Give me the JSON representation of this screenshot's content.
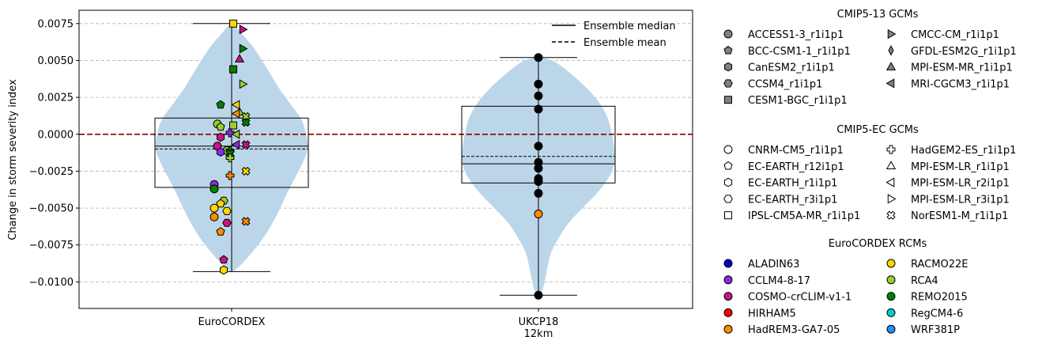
{
  "chart_data": {
    "type": "violin",
    "title": "",
    "xlabel": "",
    "ylabel": "Change in storm severity index",
    "categories": [
      "EuroCORDEX",
      "UKCP18 12km"
    ],
    "category_tick_lines": [
      [
        "EuroCORDEX"
      ],
      [
        "UKCP18",
        "12km"
      ]
    ],
    "ylim": [
      -0.0118,
      0.0084
    ],
    "yticks": [
      -0.01,
      -0.0075,
      -0.005,
      -0.0025,
      0,
      0.0025,
      0.005,
      0.0075
    ],
    "ytick_labels": [
      "−0.0100",
      "−0.0075",
      "−0.0050",
      "−0.0025",
      "0.0000",
      "0.0025",
      "0.0050",
      "0.0075"
    ],
    "grid": "y-dashed",
    "zero_line_color": "#8b0000",
    "violin_color": "#bcd6e9",
    "summary": [
      {
        "category": "EuroCORDEX",
        "q1": -0.0036,
        "median": -0.0008,
        "mean": -0.001,
        "q3": 0.0011,
        "whisker_low": -0.0093,
        "whisker_high": 0.0075
      },
      {
        "category": "UKCP18 12km",
        "q1": -0.0033,
        "median": -0.002,
        "mean": -0.0015,
        "q3": 0.0019,
        "whisker_low": -0.0109,
        "whisker_high": 0.0052
      }
    ],
    "violin_profiles": [
      {
        "category": "EuroCORDEX",
        "shape": [
          [
            0.0075,
            0.02
          ],
          [
            0.0069,
            0.12
          ],
          [
            0.006,
            0.27
          ],
          [
            0.005,
            0.4
          ],
          [
            0.004,
            0.52
          ],
          [
            0.003,
            0.64
          ],
          [
            0.002,
            0.78
          ],
          [
            0.001,
            0.92
          ],
          [
            0,
            0.98
          ],
          [
            -0.001,
            1.0
          ],
          [
            -0.002,
            0.93
          ],
          [
            -0.003,
            0.83
          ],
          [
            -0.004,
            0.73
          ],
          [
            -0.005,
            0.64
          ],
          [
            -0.006,
            0.54
          ],
          [
            -0.007,
            0.42
          ],
          [
            -0.008,
            0.27
          ],
          [
            -0.0088,
            0.13
          ],
          [
            -0.0093,
            0.02
          ]
        ]
      },
      {
        "category": "UKCP18 12km",
        "shape": [
          [
            0.0052,
            0.05
          ],
          [
            0.0049,
            0.22
          ],
          [
            0.004,
            0.45
          ],
          [
            0.003,
            0.66
          ],
          [
            0.002,
            0.82
          ],
          [
            0.001,
            0.92
          ],
          [
            0,
            0.97
          ],
          [
            -0.001,
            1.0
          ],
          [
            -0.002,
            1.0
          ],
          [
            -0.003,
            0.92
          ],
          [
            -0.004,
            0.77
          ],
          [
            -0.005,
            0.58
          ],
          [
            -0.006,
            0.4
          ],
          [
            -0.007,
            0.27
          ],
          [
            -0.008,
            0.17
          ],
          [
            -0.009,
            0.12
          ],
          [
            -0.0098,
            0.09
          ],
          [
            -0.0104,
            0.06
          ],
          [
            -0.0109,
            0.02
          ]
        ]
      }
    ],
    "series": [
      {
        "category": "EuroCORDEX",
        "points": [
          {
            "dx": 0.01,
            "y": 0.0075,
            "gcm": "CESM1-BGC_r1i1p1",
            "rcm": "RACMO22E"
          },
          {
            "dx": 0.07,
            "y": 0.0071,
            "gcm": "CMCC-CM_r1i1p1",
            "rcm": "COSMO-crCLIM-v1-1"
          },
          {
            "dx": 0.07,
            "y": 0.0058,
            "gcm": "CMCC-CM_r1i1p1",
            "rcm": "REMO2015"
          },
          {
            "dx": 0.05,
            "y": 0.0051,
            "gcm": "MPI-ESM-MR_r1i1p1",
            "rcm": "COSMO-crCLIM-v1-1"
          },
          {
            "dx": 0.01,
            "y": 0.0044,
            "gcm": "CESM1-BGC_r1i1p1",
            "rcm": "REMO2015"
          },
          {
            "dx": 0.07,
            "y": 0.0034,
            "gcm": "CMCC-CM_r1i1p1",
            "rcm": "RCA4"
          },
          {
            "dx": 0.03,
            "y": 0.002,
            "gcm": "MRI-CGCM3_r1i1p1",
            "rcm": "RACMO22E"
          },
          {
            "dx": 0.05,
            "y": 0.0015,
            "gcm": "MPI-ESM-MR_r1i1p1",
            "rcm": "RCA4"
          },
          {
            "dx": 0.03,
            "y": 0.0014,
            "gcm": "MRI-CGCM3_r1i1p1",
            "rcm": "HadREM3-GA7-05"
          },
          {
            "dx": 0.09,
            "y": 0.0012,
            "gcm": "NorESM1-M_r1i1p1",
            "rcm": "RCA4"
          },
          {
            "dx": 0.09,
            "y": 0.0008,
            "gcm": "NorESM1-M_r1i1p1",
            "rcm": "REMO2015"
          },
          {
            "dx": -0.07,
            "y": 0.002,
            "gcm": "BCC-CSM1-1_r1i1p1",
            "rcm": "REMO2015"
          },
          {
            "dx": 0.01,
            "y": 0.0006,
            "gcm": "CESM1-BGC_r1i1p1",
            "rcm": "RCA4"
          },
          {
            "dx": -0.09,
            "y": 0.0007,
            "gcm": "ACCESS1-3_r1i1p1",
            "rcm": "RCA4"
          },
          {
            "dx": -0.07,
            "y": 0.0005,
            "gcm": "BCC-CSM1-1_r1i1p1",
            "rcm": "RCA4"
          },
          {
            "dx": -0.01,
            "y": 0.0001,
            "gcm": "HadGEM2-ES_r1i1p1",
            "rcm": "CCLM4-8-17"
          },
          {
            "dx": 0.03,
            "y": 0.0,
            "gcm": "MRI-CGCM3_r1i1p1",
            "rcm": "RCA4"
          },
          {
            "dx": -0.07,
            "y": -0.0002,
            "gcm": "CanESM2_r1i1p1",
            "rcm": "COSMO-crCLIM-v1-1"
          },
          {
            "dx": 0.03,
            "y": -0.0007,
            "gcm": "MRI-CGCM3_r1i1p1",
            "rcm": "CCLM4-8-17"
          },
          {
            "dx": 0.09,
            "y": -0.0007,
            "gcm": "NorESM1-M_r1i1p1",
            "rcm": "COSMO-crCLIM-v1-1"
          },
          {
            "dx": -0.09,
            "y": -0.0008,
            "gcm": "ACCESS1-3_r1i1p1",
            "rcm": "COSMO-crCLIM-v1-1"
          },
          {
            "dx": -0.03,
            "y": -0.0011,
            "gcm": "ACCESS1-3_r1i1p1",
            "rcm": "RCA4"
          },
          {
            "dx": -0.01,
            "y": -0.0011,
            "gcm": "HadGEM2-ES_r1i1p1",
            "rcm": "REMO2015"
          },
          {
            "dx": -0.07,
            "y": -0.0012,
            "gcm": "CanESM2_r1i1p1",
            "rcm": "CCLM4-8-17"
          },
          {
            "dx": -0.01,
            "y": -0.0013,
            "gcm": "NorESM1-M_r1i1p1",
            "rcm": "REMO2015"
          },
          {
            "dx": -0.01,
            "y": -0.0016,
            "gcm": "HadGEM2-ES_r1i1p1",
            "rcm": "RCA4"
          },
          {
            "dx": -0.01,
            "y": -0.0028,
            "gcm": "HadGEM2-ES_r1i1p1",
            "rcm": "HadREM3-GA7-05"
          },
          {
            "dx": 0.09,
            "y": -0.0025,
            "gcm": "NorESM1-M_r1i1p1",
            "rcm": "RACMO22E"
          },
          {
            "dx": -0.11,
            "y": -0.0034,
            "gcm": "ACCESS1-3_r1i1p1",
            "rcm": "CCLM4-8-17"
          },
          {
            "dx": -0.11,
            "y": -0.0037,
            "gcm": "ACCESS1-3_r1i1p1",
            "rcm": "REMO2015"
          },
          {
            "dx": -0.05,
            "y": -0.0045,
            "gcm": "CCSM4_r1i1p1",
            "rcm": "RCA4"
          },
          {
            "dx": -0.07,
            "y": -0.0047,
            "gcm": "BCC-CSM1-1_r1i1p1",
            "rcm": "RACMO22E"
          },
          {
            "dx": -0.11,
            "y": -0.005,
            "gcm": "ACCESS1-3_r1i1p1",
            "rcm": "RACMO22E"
          },
          {
            "dx": -0.03,
            "y": -0.0052,
            "gcm": "EC-EARTH_r3i1p1",
            "rcm": "RACMO22E"
          },
          {
            "dx": -0.11,
            "y": -0.0056,
            "gcm": "ACCESS1-3_r1i1p1",
            "rcm": "HadREM3-GA7-05"
          },
          {
            "dx": -0.03,
            "y": -0.006,
            "gcm": "CCSM4_r1i1p1",
            "rcm": "COSMO-crCLIM-v1-1"
          },
          {
            "dx": 0.09,
            "y": -0.0059,
            "gcm": "NorESM1-M_r1i1p1",
            "rcm": "HadREM3-GA7-05"
          },
          {
            "dx": -0.07,
            "y": -0.0066,
            "gcm": "BCC-CSM1-1_r1i1p1",
            "rcm": "HadREM3-GA7-05"
          },
          {
            "dx": -0.05,
            "y": -0.0085,
            "gcm": "EC-EARTH_r12i1p1",
            "rcm": "COSMO-crCLIM-v1-1"
          },
          {
            "dx": -0.05,
            "y": -0.0092,
            "gcm": "CanESM2_r1i1p1",
            "rcm": "RACMO22E"
          }
        ]
      },
      {
        "category": "UKCP18 12km",
        "points": [
          {
            "dx": 0,
            "y": 0.0052,
            "color": "#000000"
          },
          {
            "dx": 0,
            "y": 0.0034,
            "color": "#000000"
          },
          {
            "dx": 0,
            "y": 0.0026,
            "color": "#000000"
          },
          {
            "dx": 0,
            "y": 0.0017,
            "color": "#000000"
          },
          {
            "dx": 0,
            "y": -0.0008,
            "color": "#000000"
          },
          {
            "dx": 0,
            "y": -0.0019,
            "color": "#000000"
          },
          {
            "dx": 0,
            "y": -0.0023,
            "color": "#000000"
          },
          {
            "dx": 0,
            "y": -0.003,
            "color": "#000000"
          },
          {
            "dx": 0,
            "y": -0.0032,
            "color": "#000000"
          },
          {
            "dx": 0,
            "y": -0.004,
            "color": "#000000"
          },
          {
            "dx": 0,
            "y": -0.0054,
            "color": "#ff8c00"
          },
          {
            "dx": 0,
            "y": -0.0109,
            "color": "#000000"
          }
        ]
      }
    ],
    "line_legend": {
      "placement": "upper-right",
      "entries": [
        {
          "label": "Ensemble median",
          "style": "solid"
        },
        {
          "label": "Ensemble mean",
          "style": "dashed"
        }
      ]
    },
    "legend_groups": [
      {
        "title": "CMIP5-13 GCMs",
        "fill": "#808080",
        "entries": [
          {
            "label": "ACCESS1-3_r1i1p1",
            "marker": "circle"
          },
          {
            "label": "BCC-CSM1-1_r1i1p1",
            "marker": "pentagon"
          },
          {
            "label": "CanESM2_r1i1p1",
            "marker": "hexagon-v"
          },
          {
            "label": "CCSM4_r1i1p1",
            "marker": "hexagon-h"
          },
          {
            "label": "CESM1-BGC_r1i1p1",
            "marker": "square"
          },
          {
            "label": "CMCC-CM_r1i1p1",
            "marker": "tri-right"
          },
          {
            "label": "GFDL-ESM2G_r1i1p1",
            "marker": "thin-diamond"
          },
          {
            "label": "MPI-ESM-MR_r1i1p1",
            "marker": "tri-up"
          },
          {
            "label": "MRI-CGCM3_r1i1p1",
            "marker": "tri-left"
          }
        ]
      },
      {
        "title": "CMIP5-EC GCMs",
        "fill": "#ffffff",
        "entries": [
          {
            "label": "CNRM-CM5_r1i1p1",
            "marker": "circle"
          },
          {
            "label": "EC-EARTH_r12i1p1",
            "marker": "pentagon"
          },
          {
            "label": "EC-EARTH_r1i1p1",
            "marker": "hexagon-v"
          },
          {
            "label": "EC-EARTH_r3i1p1",
            "marker": "hexagon-h"
          },
          {
            "label": "IPSL-CM5A-MR_r1i1p1",
            "marker": "square"
          },
          {
            "label": "HadGEM2-ES_r1i1p1",
            "marker": "plus"
          },
          {
            "label": "MPI-ESM-LR_r1i1p1",
            "marker": "tri-up"
          },
          {
            "label": "MPI-ESM-LR_r2i1p1",
            "marker": "tri-left"
          },
          {
            "label": "MPI-ESM-LR_r3i1p1",
            "marker": "tri-right"
          },
          {
            "label": "NorESM1-M_r1i1p1",
            "marker": "x"
          }
        ]
      },
      {
        "title": "EuroCORDEX RCMs",
        "marker": "circle",
        "entries": [
          {
            "label": "ALADIN63",
            "color": "#0000cd"
          },
          {
            "label": "CCLM4-8-17",
            "color": "#8a2be2"
          },
          {
            "label": "COSMO-crCLIM-v1-1",
            "color": "#c71585"
          },
          {
            "label": "HIRHAM5",
            "color": "#ff0000"
          },
          {
            "label": "HadREM3-GA7-05",
            "color": "#ff8c00"
          },
          {
            "label": "RACMO22E",
            "color": "#ffd700"
          },
          {
            "label": "RCA4",
            "color": "#9acd32"
          },
          {
            "label": "REMO2015",
            "color": "#008000"
          },
          {
            "label": "RegCM4-6",
            "color": "#00ced1"
          },
          {
            "label": "WRF381P",
            "color": "#1e90ff"
          }
        ]
      }
    ]
  }
}
